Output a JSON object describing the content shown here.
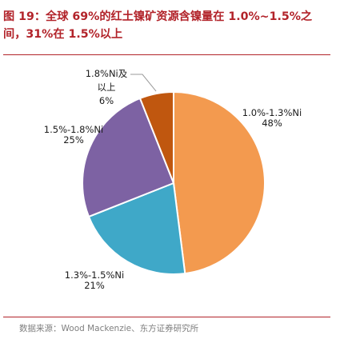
{
  "figure": {
    "title": "图 19：全球 69%的红土镍矿资源含镍量在 1.0%~1.5%之间，31%在 1.5%以上",
    "source": "数据来源：Wood Mackenzie、东方证券研究所"
  },
  "chart_data": {
    "type": "pie",
    "title": "",
    "slices": [
      {
        "label": "1.0%-1.3%Ni",
        "value": 48,
        "value_label": "48%",
        "color": "#f39a4f"
      },
      {
        "label": "1.3%-1.5%Ni",
        "value": 21,
        "value_label": "21%",
        "color": "#3fa8c8"
      },
      {
        "label": "1.5%-1.8%Ni",
        "value": 25,
        "value_label": "25%",
        "color": "#7d62a3"
      },
      {
        "label": "1.8%Ni及以上",
        "value": 6,
        "value_label": "6%",
        "color": "#c0570f"
      }
    ],
    "start_angle": "12 o'clock",
    "direction": "clockwise",
    "legend": "none (labels beside slices)"
  }
}
